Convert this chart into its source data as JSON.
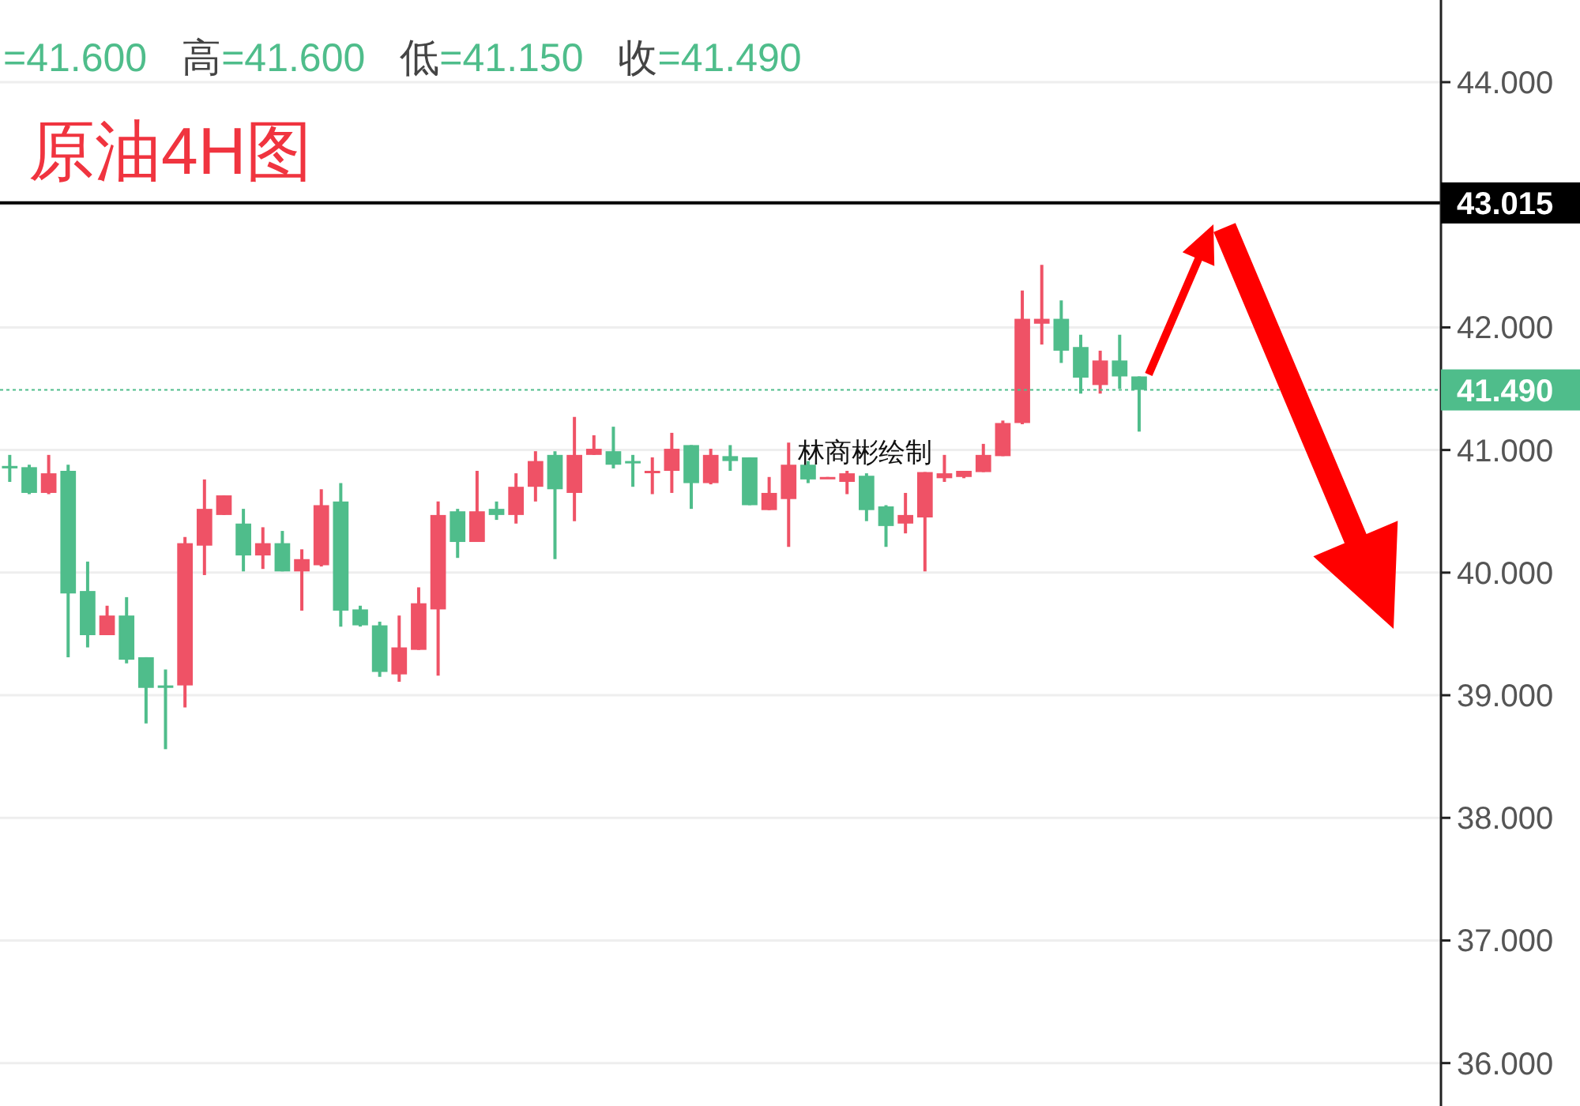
{
  "chart_data": {
    "type": "candlestick",
    "title": "原油4H图",
    "annotations": [
      "=41.600",
      "高=41.600",
      "低=41.150",
      "收=41.490",
      "林商彬绘制"
    ],
    "categories": [
      null,
      null,
      null,
      null,
      null,
      null,
      null,
      null,
      null,
      null,
      null,
      null,
      null,
      null,
      null,
      null,
      null,
      null,
      null,
      null,
      null,
      null,
      null,
      null,
      null,
      null,
      null,
      null,
      null,
      null,
      null,
      null,
      null,
      null,
      null,
      null,
      null,
      null,
      null,
      null,
      null,
      null,
      null,
      null,
      null,
      null,
      null,
      null,
      null,
      null,
      null,
      null,
      null,
      null,
      null,
      null,
      null,
      null,
      null,
      null,
      null,
      null,
      null,
      null,
      null,
      null,
      null,
      null,
      null,
      null,
      null,
      null,
      null,
      null
    ],
    "ohlc": [
      [
        40.87,
        40.96,
        40.74,
        40.85
      ],
      [
        40.86,
        40.88,
        40.64,
        40.65
      ],
      [
        40.65,
        40.96,
        40.64,
        40.81
      ],
      [
        40.83,
        40.88,
        39.31,
        39.83
      ],
      [
        39.85,
        40.09,
        39.39,
        39.49
      ],
      [
        39.49,
        39.73,
        39.49,
        39.65
      ],
      [
        39.65,
        39.8,
        39.26,
        39.29
      ],
      [
        39.31,
        39.31,
        38.77,
        39.06
      ],
      [
        39.08,
        39.21,
        38.56,
        39.06
      ],
      [
        39.08,
        40.29,
        38.9,
        40.24
      ],
      [
        40.22,
        40.76,
        39.98,
        40.52
      ],
      [
        40.47,
        40.63,
        40.47,
        40.63
      ],
      [
        40.4,
        40.52,
        40.01,
        40.14
      ],
      [
        40.14,
        40.37,
        40.03,
        40.24
      ],
      [
        40.24,
        40.34,
        40.01,
        40.01
      ],
      [
        40.01,
        40.19,
        39.69,
        40.11
      ],
      [
        40.06,
        40.68,
        40.05,
        40.55
      ],
      [
        40.58,
        40.73,
        39.56,
        39.69
      ],
      [
        39.7,
        39.73,
        39.56,
        39.57
      ],
      [
        39.57,
        39.6,
        39.15,
        39.19
      ],
      [
        39.17,
        39.65,
        39.11,
        39.39
      ],
      [
        39.37,
        39.88,
        39.37,
        39.75
      ],
      [
        39.7,
        40.58,
        39.16,
        40.47
      ],
      [
        40.5,
        40.52,
        40.12,
        40.25
      ],
      [
        40.25,
        40.83,
        40.25,
        40.5
      ],
      [
        40.52,
        40.58,
        40.43,
        40.47
      ],
      [
        40.47,
        40.81,
        40.4,
        40.7
      ],
      [
        40.7,
        40.99,
        40.58,
        40.91
      ],
      [
        40.96,
        40.99,
        40.11,
        40.68
      ],
      [
        40.65,
        41.27,
        40.42,
        40.96
      ],
      [
        40.96,
        41.12,
        40.96,
        41.01
      ],
      [
        40.99,
        41.19,
        40.85,
        40.88
      ],
      [
        40.91,
        40.96,
        40.7,
        40.9
      ],
      [
        40.82,
        40.94,
        40.64,
        40.83
      ],
      [
        40.83,
        41.14,
        40.65,
        41.01
      ],
      [
        41.04,
        41.04,
        40.52,
        40.73
      ],
      [
        40.73,
        41.01,
        40.72,
        40.96
      ],
      [
        40.95,
        41.04,
        40.83,
        40.91
      ],
      [
        40.94,
        40.94,
        40.55,
        40.55
      ],
      [
        40.51,
        40.78,
        40.51,
        40.65
      ],
      [
        40.6,
        41.06,
        40.21,
        40.88
      ],
      [
        40.88,
        40.91,
        40.73,
        40.76
      ],
      [
        40.77,
        40.78,
        40.77,
        40.78
      ],
      [
        40.74,
        40.83,
        40.64,
        40.81
      ],
      [
        40.79,
        40.81,
        40.42,
        40.51
      ],
      [
        40.54,
        40.55,
        40.21,
        40.38
      ],
      [
        40.4,
        40.65,
        40.32,
        40.47
      ],
      [
        40.45,
        40.82,
        40.01,
        40.82
      ],
      [
        40.77,
        40.96,
        40.74,
        40.81
      ],
      [
        40.78,
        40.83,
        40.77,
        40.83
      ],
      [
        40.82,
        41.05,
        40.82,
        40.96
      ],
      [
        40.95,
        41.24,
        40.95,
        41.22
      ],
      [
        41.22,
        42.3,
        41.21,
        42.07
      ],
      [
        42.03,
        42.51,
        41.86,
        42.07
      ],
      [
        42.07,
        42.22,
        41.71,
        41.81
      ],
      [
        41.84,
        41.94,
        41.46,
        41.59
      ],
      [
        41.53,
        41.81,
        41.46,
        41.73
      ],
      [
        41.73,
        41.94,
        41.5,
        41.6
      ],
      [
        41.6,
        41.6,
        41.15,
        41.49
      ],
      null,
      null,
      null,
      null,
      null,
      null,
      null,
      null,
      null,
      null,
      null,
      null,
      null,
      null,
      null
    ],
    "colors": [
      "#4fbd8b",
      "#4fbd8b",
      "#ef5266",
      "#4fbd8b",
      "#4fbd8b",
      "#ef5266",
      "#4fbd8b",
      "#4fbd8b",
      "#4fbd8b",
      "#ef5266",
      "#ef5266",
      "#ef5266",
      "#4fbd8b",
      "#ef5266",
      "#4fbd8b",
      "#ef5266",
      "#ef5266",
      "#4fbd8b",
      "#4fbd8b",
      "#4fbd8b",
      "#ef5266",
      "#ef5266",
      "#ef5266",
      "#4fbd8b",
      "#ef5266",
      "#4fbd8b",
      "#ef5266",
      "#ef5266",
      "#4fbd8b",
      "#ef5266",
      "#ef5266",
      "#4fbd8b",
      "#4fbd8b",
      "#ef5266",
      "#ef5266",
      "#4fbd8b",
      "#ef5266",
      "#4fbd8b",
      "#4fbd8b",
      "#ef5266",
      "#ef5266",
      "#4fbd8b",
      "#ef5266",
      "#ef5266",
      "#4fbd8b",
      "#4fbd8b",
      "#ef5266",
      "#ef5266",
      "#ef5266",
      "#ef5266",
      "#ef5266",
      "#ef5266",
      "#ef5266",
      "#ef5266",
      "#4fbd8b",
      "#4fbd8b",
      "#ef5266",
      "#4fbd8b",
      "#4fbd8b",
      null,
      null,
      null,
      null,
      null,
      null,
      null,
      null,
      null,
      null,
      null,
      null,
      null,
      null,
      null
    ],
    "ylim": [
      35.65,
      44.67
    ],
    "yticks": [
      {
        "value": 36,
        "label": "36.000"
      },
      {
        "value": 37,
        "label": "37.000"
      },
      {
        "value": 38,
        "label": "38.000"
      },
      {
        "value": 39,
        "label": "39.000"
      },
      {
        "value": 40,
        "label": "40.000"
      },
      {
        "value": 41,
        "label": "41.000"
      },
      {
        "value": 42,
        "label": "42.000"
      },
      {
        "value": 43,
        "label": null
      },
      {
        "value": 44,
        "label": "44.000"
      }
    ],
    "ref_lines": [
      {
        "axis": "y",
        "value": 43.015,
        "label": "43.015",
        "color": "#000000",
        "line_style": "solid"
      },
      {
        "axis": "y",
        "value": 41.49,
        "label": "41.490",
        "color": "#4fbd8b",
        "line_style": "dotted"
      }
    ],
    "grid": "y",
    "tick_labels": "y"
  }
}
